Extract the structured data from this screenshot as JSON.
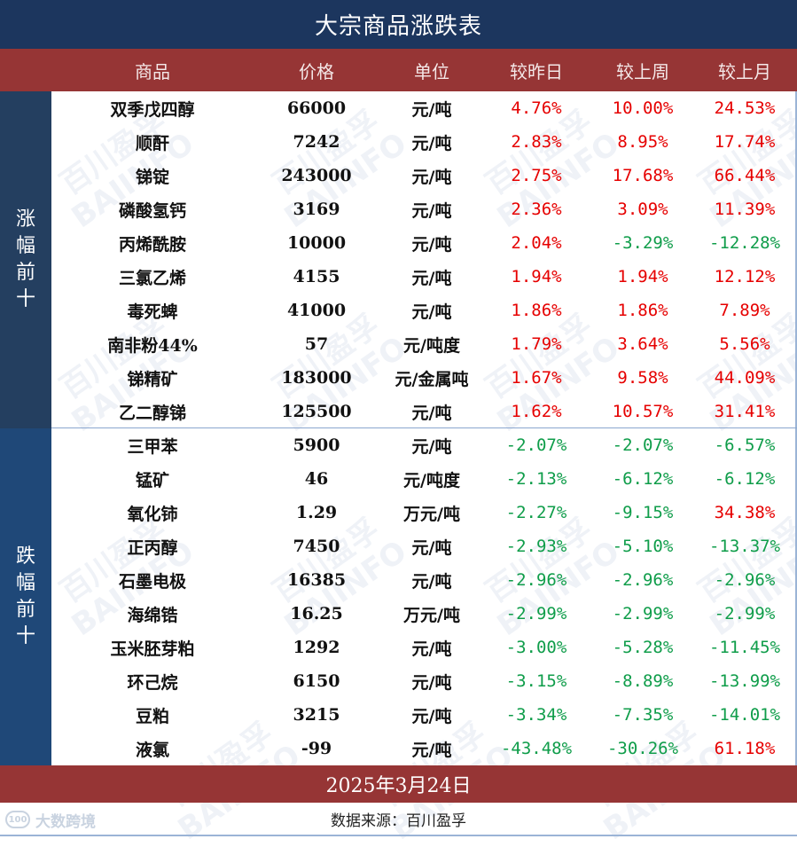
{
  "title": "大宗商品涨跌表",
  "header": {
    "name": "商品",
    "price": "价格",
    "unit": "单位",
    "vs_yesterday": "较昨日",
    "vs_last_week": "较上周",
    "vs_last_month": "较上月"
  },
  "groups": {
    "up": {
      "label_chars": [
        "涨",
        "幅",
        "前",
        "十"
      ],
      "label": "涨幅前十"
    },
    "down": {
      "label_chars": [
        "跌",
        "幅",
        "前",
        "十"
      ],
      "label": "跌幅前十"
    }
  },
  "colors": {
    "title_bg": "#1c365e",
    "header_bg": "#963535",
    "up_panel_bg": "#243f60",
    "down_panel_bg": "#1f4878",
    "positive": "#e60000",
    "negative": "#0f9d4a"
  },
  "rows": [
    {
      "name": "双季戊四醇",
      "price": "66000",
      "unit": "元/吨",
      "d": "4.76%",
      "w": "10.00%",
      "m": "24.53%"
    },
    {
      "name": "顺酐",
      "price": "7242",
      "unit": "元/吨",
      "d": "2.83%",
      "w": "8.95%",
      "m": "17.74%"
    },
    {
      "name": "锑锭",
      "price": "243000",
      "unit": "元/吨",
      "d": "2.75%",
      "w": "17.68%",
      "m": "66.44%"
    },
    {
      "name": "磷酸氢钙",
      "price": "3169",
      "unit": "元/吨",
      "d": "2.36%",
      "w": "3.09%",
      "m": "11.39%"
    },
    {
      "name": "丙烯酰胺",
      "price": "10000",
      "unit": "元/吨",
      "d": "2.04%",
      "w": "-3.29%",
      "m": "-12.28%"
    },
    {
      "name": "三氯乙烯",
      "price": "4155",
      "unit": "元/吨",
      "d": "1.94%",
      "w": "1.94%",
      "m": "12.12%"
    },
    {
      "name": "毒死蜱",
      "price": "41000",
      "unit": "元/吨",
      "d": "1.86%",
      "w": "1.86%",
      "m": "7.89%"
    },
    {
      "name": "南非粉44%",
      "price": "57",
      "unit": "元/吨度",
      "d": "1.79%",
      "w": "3.64%",
      "m": "5.56%"
    },
    {
      "name": "锑精矿",
      "price": "183000",
      "unit": "元/金属吨",
      "d": "1.67%",
      "w": "9.58%",
      "m": "44.09%"
    },
    {
      "name": "乙二醇锑",
      "price": "125500",
      "unit": "元/吨",
      "d": "1.62%",
      "w": "10.57%",
      "m": "31.41%"
    },
    {
      "name": "三甲苯",
      "price": "5900",
      "unit": "元/吨",
      "d": "-2.07%",
      "w": "-2.07%",
      "m": "-6.57%"
    },
    {
      "name": "锰矿",
      "price": "46",
      "unit": "元/吨度",
      "d": "-2.13%",
      "w": "-6.12%",
      "m": "-6.12%"
    },
    {
      "name": "氧化铈",
      "price": "1.29",
      "unit": "万元/吨",
      "d": "-2.27%",
      "w": "-9.15%",
      "m": "34.38%"
    },
    {
      "name": "正丙醇",
      "price": "7450",
      "unit": "元/吨",
      "d": "-2.93%",
      "w": "-5.10%",
      "m": "-13.37%"
    },
    {
      "name": "石墨电极",
      "price": "16385",
      "unit": "元/吨",
      "d": "-2.96%",
      "w": "-2.96%",
      "m": "-2.96%"
    },
    {
      "name": "海绵锆",
      "price": "16.25",
      "unit": "万元/吨",
      "d": "-2.99%",
      "w": "-2.99%",
      "m": "-2.99%"
    },
    {
      "name": "玉米胚芽粕",
      "price": "1292",
      "unit": "元/吨",
      "d": "-3.00%",
      "w": "-5.28%",
      "m": "-11.45%"
    },
    {
      "name": "环己烷",
      "price": "6150",
      "unit": "元/吨",
      "d": "-3.15%",
      "w": "-8.89%",
      "m": "-13.99%"
    },
    {
      "name": "豆粕",
      "price": "3215",
      "unit": "元/吨",
      "d": "-3.34%",
      "w": "-7.35%",
      "m": "-14.01%"
    },
    {
      "name": "液氯",
      "price": "-99",
      "unit": "元/吨",
      "d": "-43.48%",
      "w": "-30.26%",
      "m": "61.18%"
    }
  ],
  "footer": {
    "date": "2025年3月24日",
    "source": "数据来源：百川盈孚",
    "logo_text": "大数跨境",
    "logo_mark": "100"
  },
  "watermark": {
    "cn": "百川盈孚",
    "en": "BAIINFO"
  },
  "chart_data": {
    "type": "table",
    "title": "大宗商品涨跌表",
    "columns": [
      "商品",
      "价格",
      "单位",
      "较昨日",
      "较上周",
      "较上月"
    ],
    "groups": [
      {
        "label": "涨幅前十",
        "row_range": [
          0,
          9
        ]
      },
      {
        "label": "跌幅前十",
        "row_range": [
          10,
          19
        ]
      }
    ],
    "date": "2025年3月24日",
    "source": "百川盈孚"
  }
}
